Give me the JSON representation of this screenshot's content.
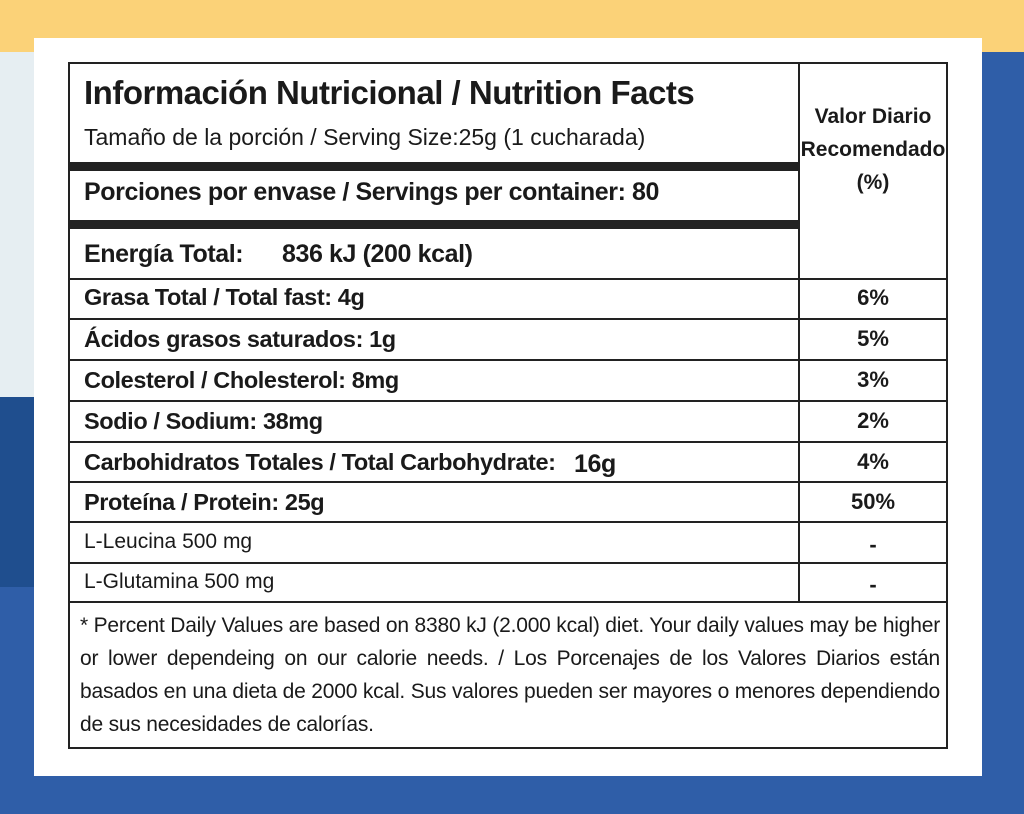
{
  "header": {
    "title": "Información Nutricional / Nutrition Facts",
    "serving_size": "Tamaño de la porción / Serving Size:25g (1 cucharada)",
    "servings_per_container": "Porciones por envase / Servings per container: 80",
    "energy_label": "Energía Total:",
    "energy_value": "836 kJ  (200 kcal)",
    "dv_header": "Valor Diario Recomendado (%)"
  },
  "rows": [
    {
      "label": "Grasa Total / Total fast: 4g",
      "dv": "6%"
    },
    {
      "label": "Ácidos grasos saturados: 1g",
      "dv": "5%"
    },
    {
      "label": "Colesterol / Cholesterol: 8mg",
      "dv": "3%"
    },
    {
      "label": "Sodio / Sodium: 38mg",
      "dv": "2%"
    },
    {
      "label": "Carbohidratos Totales / Total Carbohydrate:",
      "value": "16g",
      "dv": "4%"
    },
    {
      "label": "Proteína / Protein: 25g",
      "dv": "50%"
    },
    {
      "label": "L-Leucina 500 mg",
      "dv": "-"
    },
    {
      "label": "L-Glutamina 500 mg",
      "dv": "-"
    }
  ],
  "footnote": "* Percent Daily Values are based on 8380 kJ (2.000 kcal) diet. Your daily values may be higher or lower dependeing on our calorie needs. / Los Porcenajes de los Valores Diarios están basados en una dieta de 2000 kcal. Sus valores pueden ser mayores o menores dependiendo de sus necesidades de calorías."
}
